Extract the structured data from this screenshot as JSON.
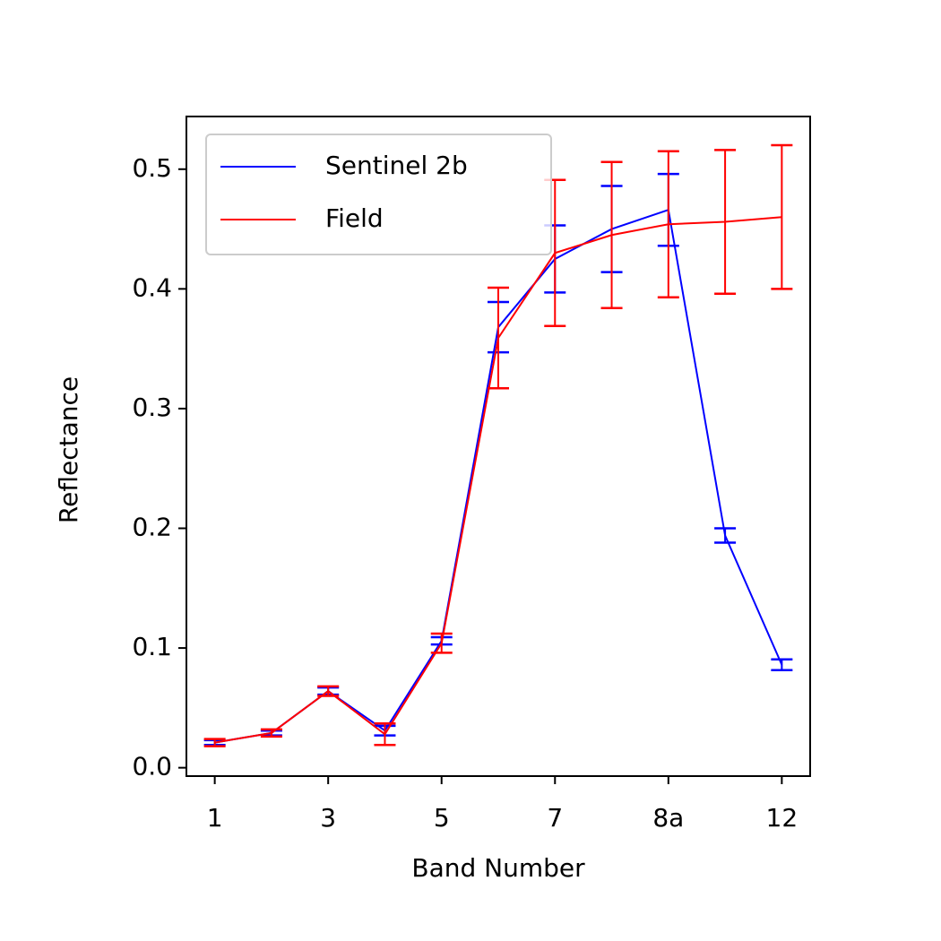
{
  "chart_data": {
    "type": "line",
    "x_label": "Band Number",
    "y_label": "Reflectance",
    "categories": [
      "1",
      null,
      "3",
      null,
      "5",
      null,
      "7",
      null,
      "8a",
      null,
      "12"
    ],
    "series": [
      {
        "name": "Sentinel 2b",
        "color": "#0000ff",
        "values": [
          0.021,
          0.029,
          0.064,
          0.031,
          0.106,
          0.368,
          0.425,
          0.45,
          0.466,
          0.194,
          0.086
        ],
        "errors": [
          0.002,
          0.002,
          0.003,
          0.004,
          0.003,
          0.021,
          0.028,
          0.036,
          0.03,
          0.006,
          0.0045
        ]
      },
      {
        "name": "Field",
        "color": "#ff0000",
        "values": [
          0.021,
          0.029,
          0.064,
          0.028,
          0.104,
          0.359,
          0.43,
          0.445,
          0.454,
          0.456,
          0.46
        ],
        "errors": [
          0.003,
          0.003,
          0.004,
          0.009,
          0.008,
          0.042,
          0.061,
          0.061,
          0.061,
          0.06,
          0.06
        ]
      }
    ],
    "xlim": [
      -0.5,
      10.5
    ],
    "ylim": [
      -0.007,
      0.544
    ],
    "yticks": [
      {
        "value": 0,
        "label": "0.0"
      },
      0.1,
      0.2,
      0.3,
      0.4,
      0.5
    ],
    "legend": "upper left"
  }
}
